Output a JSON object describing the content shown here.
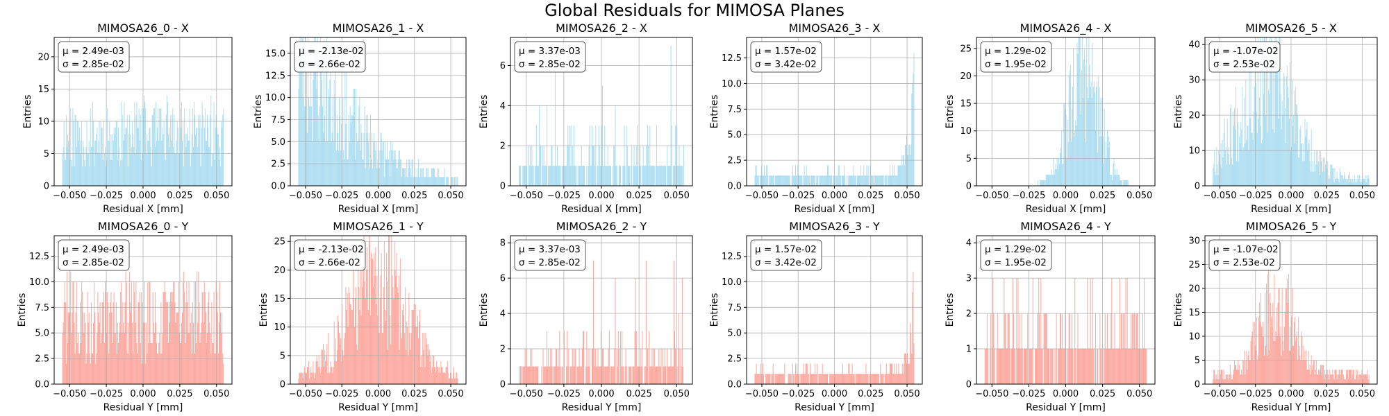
{
  "figure": {
    "title": "Global Residuals for MIMOSA Planes",
    "colors": {
      "x_bars": "#87ceeb",
      "y_bars": "#fa8072",
      "grid": "#b0b0b0",
      "axes": "#000000"
    }
  },
  "chart_data": [
    {
      "type": "bar",
      "title": "MIMOSA26_0 - X",
      "xlabel": "Residual X [mm]",
      "ylabel": "Entries",
      "bar_color": "#87ceeb",
      "xlim": [
        -0.0605,
        0.0605
      ],
      "ylim": [
        0,
        23
      ],
      "xticks": [
        -0.05,
        -0.025,
        0.0,
        0.025,
        0.05
      ],
      "xtick_labels": [
        "−0.050",
        "−0.025",
        "0.000",
        "0.025",
        "0.050"
      ],
      "yticks": [
        0,
        5,
        10,
        15,
        20
      ],
      "ytick_labels": [
        "0",
        "5",
        "10",
        "15",
        "20"
      ],
      "stats": {
        "mu": "μ = 2.49e-03",
        "sigma": "σ = 2.85e-02"
      },
      "profile": "flat",
      "peak": 15,
      "base": 3,
      "bins": 220,
      "seed": 11,
      "grid": true
    },
    {
      "type": "bar",
      "title": "MIMOSA26_1 - X",
      "xlabel": "Residual X [mm]",
      "ylabel": "Entries",
      "bar_color": "#87ceeb",
      "xlim": [
        -0.0605,
        0.0605
      ],
      "ylim": [
        0,
        16.8
      ],
      "xticks": [
        -0.05,
        -0.025,
        0.0,
        0.025,
        0.05
      ],
      "xtick_labels": [
        "−0.050",
        "−0.025",
        "0.000",
        "0.025",
        "0.050"
      ],
      "yticks": [
        0,
        2.5,
        5,
        7.5,
        10,
        12.5,
        15
      ],
      "ytick_labels": [
        "0.0",
        "2.5",
        "5.0",
        "7.5",
        "10.0",
        "12.5",
        "15.0"
      ],
      "stats": {
        "mu": "μ = -2.13e-02",
        "sigma": "σ = 2.66e-02"
      },
      "profile": "left",
      "peak": 16,
      "base": 1,
      "bins": 220,
      "seed": 23,
      "grid": true
    },
    {
      "type": "bar",
      "title": "MIMOSA26_2 - X",
      "xlabel": "Residual X [mm]",
      "ylabel": "Entries",
      "bar_color": "#87ceeb",
      "xlim": [
        -0.0605,
        0.0605
      ],
      "ylim": [
        0,
        7.4
      ],
      "xticks": [
        -0.05,
        -0.025,
        0.0,
        0.025,
        0.05
      ],
      "xtick_labels": [
        "−0.050",
        "−0.025",
        "0.000",
        "0.025",
        "0.050"
      ],
      "yticks": [
        0,
        2,
        4,
        6
      ],
      "ytick_labels": [
        "0",
        "2",
        "4",
        "6"
      ],
      "stats": {
        "mu": "μ = 3.37e-03",
        "sigma": "σ = 2.85e-02"
      },
      "profile": "sparse",
      "peak": 7,
      "base": 1,
      "bins": 220,
      "seed": 37,
      "grid": true
    },
    {
      "type": "bar",
      "title": "MIMOSA26_3 - X",
      "xlabel": "Residual X [mm]",
      "ylabel": "Entries",
      "bar_color": "#87ceeb",
      "xlim": [
        -0.0605,
        0.0605
      ],
      "ylim": [
        0,
        14.5
      ],
      "xticks": [
        -0.05,
        -0.025,
        0.0,
        0.025,
        0.05
      ],
      "xtick_labels": [
        "−0.050",
        "−0.025",
        "0.000",
        "0.025",
        "0.050"
      ],
      "yticks": [
        0,
        2.5,
        5,
        7.5,
        10,
        12.5
      ],
      "ytick_labels": [
        "0.0",
        "2.5",
        "5.0",
        "7.5",
        "10.0",
        "12.5"
      ],
      "stats": {
        "mu": "μ = 1.57e-02",
        "sigma": "σ = 3.42e-02"
      },
      "profile": "rightspike",
      "peak": 14,
      "base": 1,
      "bins": 220,
      "seed": 41,
      "grid": true
    },
    {
      "type": "bar",
      "title": "MIMOSA26_4 - X",
      "xlabel": "Residual X [mm]",
      "ylabel": "Entries",
      "bar_color": "#87ceeb",
      "xlim": [
        -0.0605,
        0.0605
      ],
      "ylim": [
        0,
        27
      ],
      "xticks": [
        -0.05,
        -0.025,
        0.0,
        0.025,
        0.05
      ],
      "xtick_labels": [
        "−0.050",
        "−0.025",
        "0.000",
        "0.025",
        "0.050"
      ],
      "yticks": [
        0,
        5,
        10,
        15,
        20,
        25
      ],
      "ytick_labels": [
        "0",
        "5",
        "10",
        "15",
        "20",
        "25"
      ],
      "stats": {
        "mu": "μ = 1.29e-02",
        "sigma": "σ = 1.95e-02"
      },
      "profile": "gauss",
      "center": 0.012,
      "width": 0.017,
      "peak": 21,
      "base": 0,
      "bins": 220,
      "seed": 53,
      "grid": true
    },
    {
      "type": "bar",
      "title": "MIMOSA26_5 - X",
      "xlabel": "Residual X [mm]",
      "ylabel": "Entries",
      "bar_color": "#87ceeb",
      "xlim": [
        -0.0605,
        0.0605
      ],
      "ylim": [
        0,
        42
      ],
      "xticks": [
        -0.05,
        -0.025,
        0.0,
        0.025,
        0.05
      ],
      "xtick_labels": [
        "−0.050",
        "−0.025",
        "0.000",
        "0.025",
        "0.050"
      ],
      "yticks": [
        0,
        10,
        20,
        30,
        40
      ],
      "ytick_labels": [
        "0",
        "10",
        "20",
        "30",
        "40"
      ],
      "stats": {
        "mu": "μ = -1.07e-02",
        "sigma": "σ = 2.53e-02"
      },
      "profile": "gauss",
      "center": -0.018,
      "width": 0.032,
      "peak": 30,
      "base": 2,
      "bins": 220,
      "seed": 67,
      "grid": true
    },
    {
      "type": "bar",
      "title": "MIMOSA26_0 - Y",
      "xlabel": "Residual Y [mm]",
      "ylabel": "Entries",
      "bar_color": "#fa8072",
      "xlim": [
        -0.0605,
        0.0605
      ],
      "ylim": [
        0,
        14.5
      ],
      "xticks": [
        -0.05,
        -0.025,
        0.0,
        0.025,
        0.05
      ],
      "xtick_labels": [
        "−0.050",
        "−0.025",
        "0.000",
        "0.025",
        "0.050"
      ],
      "yticks": [
        0,
        2.5,
        5,
        7.5,
        10,
        12.5
      ],
      "ytick_labels": [
        "0.0",
        "2.5",
        "5.0",
        "7.5",
        "10.0",
        "12.5"
      ],
      "stats": {
        "mu": "μ = 2.49e-03",
        "sigma": "σ = 2.85e-02"
      },
      "profile": "flat",
      "peak": 11,
      "base": 4,
      "bins": 220,
      "seed": 71,
      "grid": true
    },
    {
      "type": "bar",
      "title": "MIMOSA26_1 - Y",
      "xlabel": "Residual Y [mm]",
      "ylabel": "Entries",
      "bar_color": "#fa8072",
      "xlim": [
        -0.0605,
        0.0605
      ],
      "ylim": [
        0,
        26
      ],
      "xticks": [
        -0.05,
        -0.025,
        0.0,
        0.025,
        0.05
      ],
      "xtick_labels": [
        "−0.050",
        "−0.025",
        "0.000",
        "0.025",
        "0.050"
      ],
      "yticks": [
        0,
        5,
        10,
        15,
        20,
        25
      ],
      "ytick_labels": [
        "0",
        "5",
        "10",
        "15",
        "20",
        "25"
      ],
      "stats": {
        "mu": "μ = -2.13e-02",
        "sigma": "σ = 2.66e-02"
      },
      "profile": "gauss",
      "center": 0.0,
      "width": 0.034,
      "peak": 18,
      "base": 1,
      "bins": 220,
      "seed": 83,
      "grid": true
    },
    {
      "type": "bar",
      "title": "MIMOSA26_2 - Y",
      "xlabel": "Residual Y [mm]",
      "ylabel": "Entries",
      "bar_color": "#fa8072",
      "xlim": [
        -0.0605,
        0.0605
      ],
      "ylim": [
        0,
        8.4
      ],
      "xticks": [
        -0.05,
        -0.025,
        0.0,
        0.025,
        0.05
      ],
      "xtick_labels": [
        "−0.050",
        "−0.025",
        "0.000",
        "0.025",
        "0.050"
      ],
      "yticks": [
        0,
        2,
        4,
        6,
        8
      ],
      "ytick_labels": [
        "0",
        "2",
        "4",
        "6",
        "8"
      ],
      "stats": {
        "mu": "μ = 3.37e-03",
        "sigma": "σ = 2.85e-02"
      },
      "profile": "sparse",
      "peak": 7,
      "base": 1,
      "bins": 220,
      "seed": 97,
      "grid": true
    },
    {
      "type": "bar",
      "title": "MIMOSA26_3 - Y",
      "xlabel": "Residual Y [mm]",
      "ylabel": "Entries",
      "bar_color": "#fa8072",
      "xlim": [
        -0.0605,
        0.0605
      ],
      "ylim": [
        0,
        14.5
      ],
      "xticks": [
        -0.05,
        -0.025,
        0.0,
        0.025,
        0.05
      ],
      "xtick_labels": [
        "−0.050",
        "−0.025",
        "0.000",
        "0.025",
        "0.050"
      ],
      "yticks": [
        0,
        2.5,
        5,
        7.5,
        10,
        12.5
      ],
      "ytick_labels": [
        "0.0",
        "2.5",
        "5.0",
        "7.5",
        "10.0",
        "12.5"
      ],
      "stats": {
        "mu": "μ = 1.57e-02",
        "sigma": "σ = 3.42e-02"
      },
      "profile": "rightspike",
      "peak": 8,
      "base": 1,
      "bins": 220,
      "seed": 101,
      "grid": true
    },
    {
      "type": "bar",
      "title": "MIMOSA26_4 - Y",
      "xlabel": "Residual Y [mm]",
      "ylabel": "Entries",
      "bar_color": "#fa8072",
      "xlim": [
        -0.0605,
        0.0605
      ],
      "ylim": [
        0,
        4.2
      ],
      "xticks": [
        -0.05,
        -0.025,
        0.0,
        0.025,
        0.05
      ],
      "xtick_labels": [
        "−0.050",
        "−0.025",
        "0.000",
        "0.025",
        "0.050"
      ],
      "yticks": [
        0,
        1,
        2,
        3,
        4
      ],
      "ytick_labels": [
        "0",
        "1",
        "2",
        "3",
        "4"
      ],
      "stats": {
        "mu": "μ = 1.29e-02",
        "sigma": "σ = 1.95e-02"
      },
      "profile": "sparse",
      "peak": 4,
      "base": 1,
      "bins": 220,
      "seed": 113,
      "grid": true
    },
    {
      "type": "bar",
      "title": "MIMOSA26_5 - Y",
      "xlabel": "Residual Y [mm]",
      "ylabel": "Entries",
      "bar_color": "#fa8072",
      "xlim": [
        -0.0605,
        0.0605
      ],
      "ylim": [
        0,
        31
      ],
      "xticks": [
        -0.05,
        -0.025,
        0.0,
        0.025,
        0.05
      ],
      "xtick_labels": [
        "−0.050",
        "−0.025",
        "0.000",
        "0.025",
        "0.050"
      ],
      "yticks": [
        0,
        5,
        10,
        15,
        20,
        25,
        30
      ],
      "ytick_labels": [
        "0",
        "5",
        "10",
        "15",
        "20",
        "25",
        "30"
      ],
      "stats": {
        "mu": "μ = -1.07e-02",
        "sigma": "σ = 2.53e-02"
      },
      "profile": "gauss",
      "center": -0.01,
      "width": 0.02,
      "peak": 17,
      "base": 2,
      "bins": 220,
      "seed": 127,
      "grid": true
    }
  ]
}
